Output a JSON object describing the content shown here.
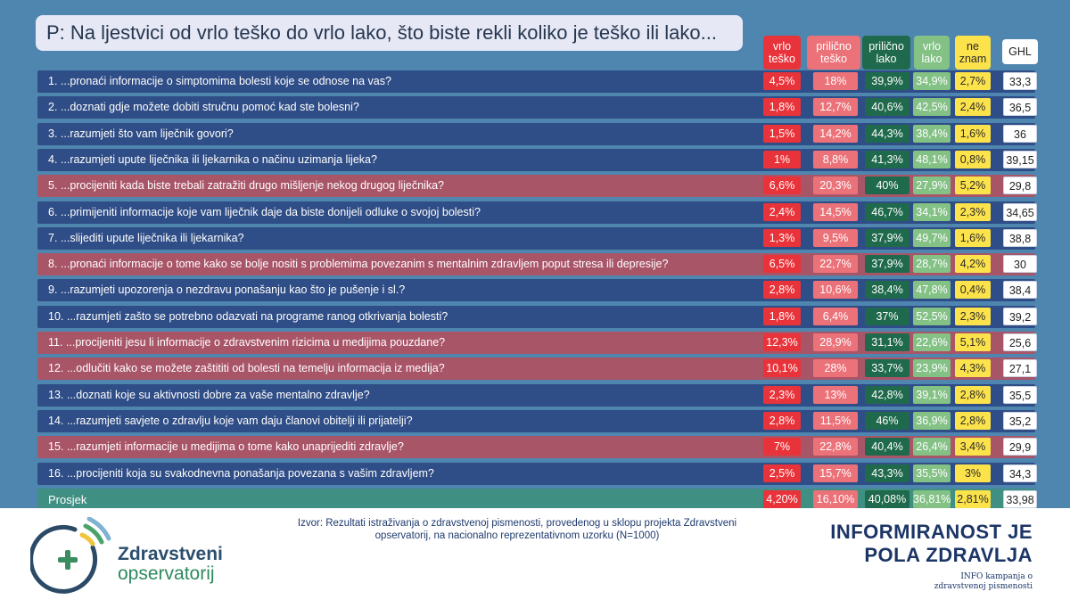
{
  "question": "P: Na ljestvici od vrlo teško do vrlo lako, što biste rekli koliko je teško ili lako...",
  "colors": {
    "panel": "#4f86b0",
    "row_dark": "#2f4d86",
    "row_highlight": "#a95568",
    "row_average": "#3f8f82",
    "vrlo_tesko": "#e8333a",
    "prilicno_tesko": "#ec7279",
    "prilicno_lako": "#1f6a4c",
    "vrlo_lako": "#83c185",
    "ne_znam": "#fde34b",
    "ghl": "#ffffff"
  },
  "chart_data": {
    "type": "table",
    "columns": [
      {
        "key": "vrlo_tesko",
        "label": [
          "vrlo",
          "teško"
        ]
      },
      {
        "key": "prilicno_tesko",
        "label": [
          "prilično",
          "teško"
        ]
      },
      {
        "key": "prilicno_lako",
        "label": [
          "prilično",
          "lako"
        ]
      },
      {
        "key": "vrlo_lako",
        "label": [
          "vrlo",
          "lako"
        ]
      },
      {
        "key": "ne_znam",
        "label": [
          "ne",
          "znam"
        ]
      },
      {
        "key": "ghl",
        "label": [
          "GHL"
        ]
      }
    ],
    "rows": [
      {
        "label": "1. ...pronaći informacije o simptomima bolesti koje se odnose na vas?",
        "highlight": false,
        "values": [
          "4,5%",
          "18%",
          "39,9%",
          "34,9%",
          "2,7%",
          "33,3"
        ]
      },
      {
        "label": "2. ...doznati gdje možete dobiti stručnu pomoć kad ste bolesni?",
        "highlight": false,
        "values": [
          "1,8%",
          "12,7%",
          "40,6%",
          "42,5%",
          "2,4%",
          "36,5"
        ]
      },
      {
        "label": "3. ...razumjeti što vam liječnik govori?",
        "highlight": false,
        "values": [
          "1,5%",
          "14,2%",
          "44,3%",
          "38,4%",
          "1,6%",
          "36"
        ]
      },
      {
        "label": "4. ...razumjeti upute liječnika ili ljekarnika o načinu uzimanja lijeka?",
        "highlight": false,
        "values": [
          "1%",
          "8,8%",
          "41,3%",
          "48,1%",
          "0,8%",
          "39,15"
        ]
      },
      {
        "label": "5. ...procijeniti kada biste trebali zatražiti drugo mišljenje nekog drugog liječnika?",
        "highlight": true,
        "values": [
          "6,6%",
          "20,3%",
          "40%",
          "27,9%",
          "5,2%",
          "29,8"
        ]
      },
      {
        "label": "6. ...primijeniti informacije koje vam liječnik daje da biste donijeli odluke o svojoj bolesti?",
        "highlight": false,
        "values": [
          "2,4%",
          "14,5%",
          "46,7%",
          "34,1%",
          "2,3%",
          "34,65"
        ]
      },
      {
        "label": "7. ...slijediti upute liječnika ili ljekarnika?",
        "highlight": false,
        "values": [
          "1,3%",
          "9,5%",
          "37,9%",
          "49,7%",
          "1,6%",
          "38,8"
        ]
      },
      {
        "label": "8. ...pronaći informacije o tome kako se bolje nositi s problemima povezanim s mentalnim zdravljem poput stresa ili depresije?",
        "highlight": true,
        "values": [
          "6,5%",
          "22,7%",
          "37,9%",
          "28,7%",
          "4,2%",
          "30"
        ]
      },
      {
        "label": "9. ...razumjeti upozorenja o nezdravu ponašanju kao što je pušenje i sl.?",
        "highlight": false,
        "values": [
          "2,8%",
          "10,6%",
          "38,4%",
          "47,8%",
          "0,4%",
          "38,4"
        ]
      },
      {
        "label": "10. ...razumjeti zašto se potrebno odazvati na programe ranog otkrivanja bolesti?",
        "highlight": false,
        "values": [
          "1,8%",
          "6,4%",
          "37%",
          "52,5%",
          "2,3%",
          "39,2"
        ]
      },
      {
        "label": "11. ...procijeniti jesu li informacije o zdravstvenim rizicima u medijima pouzdane?",
        "highlight": true,
        "values": [
          "12,3%",
          "28,9%",
          "31,1%",
          "22,6%",
          "5,1%",
          "25,6"
        ]
      },
      {
        "label": "12. ...odlučiti kako se možete zaštititi od bolesti na temelju informacija iz medija?",
        "highlight": true,
        "values": [
          "10,1%",
          "28%",
          "33,7%",
          "23,9%",
          "4,3%",
          "27,1"
        ]
      },
      {
        "label": "13. ...doznati koje su aktivnosti dobre za vaše mentalno zdravlje?",
        "highlight": false,
        "values": [
          "2,3%",
          "13%",
          "42,8%",
          "39,1%",
          "2,8%",
          "35,5"
        ]
      },
      {
        "label": "14. ...razumjeti savjete o zdravlju koje vam daju članovi obitelji ili prijatelji?",
        "highlight": false,
        "values": [
          "2,8%",
          "11,5%",
          "46%",
          "36,9%",
          "2,8%",
          "35,2"
        ]
      },
      {
        "label": "15. ...razumjeti informacije u medijima o tome kako unaprijediti zdravlje?",
        "highlight": true,
        "values": [
          "7%",
          "22,8%",
          "40,4%",
          "26,4%",
          "3,4%",
          "29,9"
        ]
      },
      {
        "label": "16. ...procijeniti koja su svakodnevna ponašanja povezana s vašim zdravljem?",
        "highlight": false,
        "values": [
          "2,5%",
          "15,7%",
          "43,3%",
          "35,5%",
          "3%",
          "34,3"
        ]
      }
    ],
    "average": {
      "label": "Prosjek",
      "values": [
        "4,20%",
        "16,10%",
        "40,08%",
        "36,81%",
        "2,81%",
        "33,98"
      ]
    }
  },
  "footer": {
    "source": "Izvor: Rezultati istraživanja o zdravstvenoj pismenosti, provedenog u sklopu projekta Zdravstveni opservatorij, na nacionalno reprezentativnom uzorku (N=1000)",
    "tagline": [
      "INFORMIRANOST JE",
      "POLA ZDRAVLJA"
    ],
    "campaign": [
      "INFO kampanja o",
      "zdravstvenoj pismenosti"
    ],
    "logo": {
      "name_line1": "Zdravstveni",
      "name_line2": "opservatorij",
      "icon": "plus-signal-icon"
    }
  }
}
